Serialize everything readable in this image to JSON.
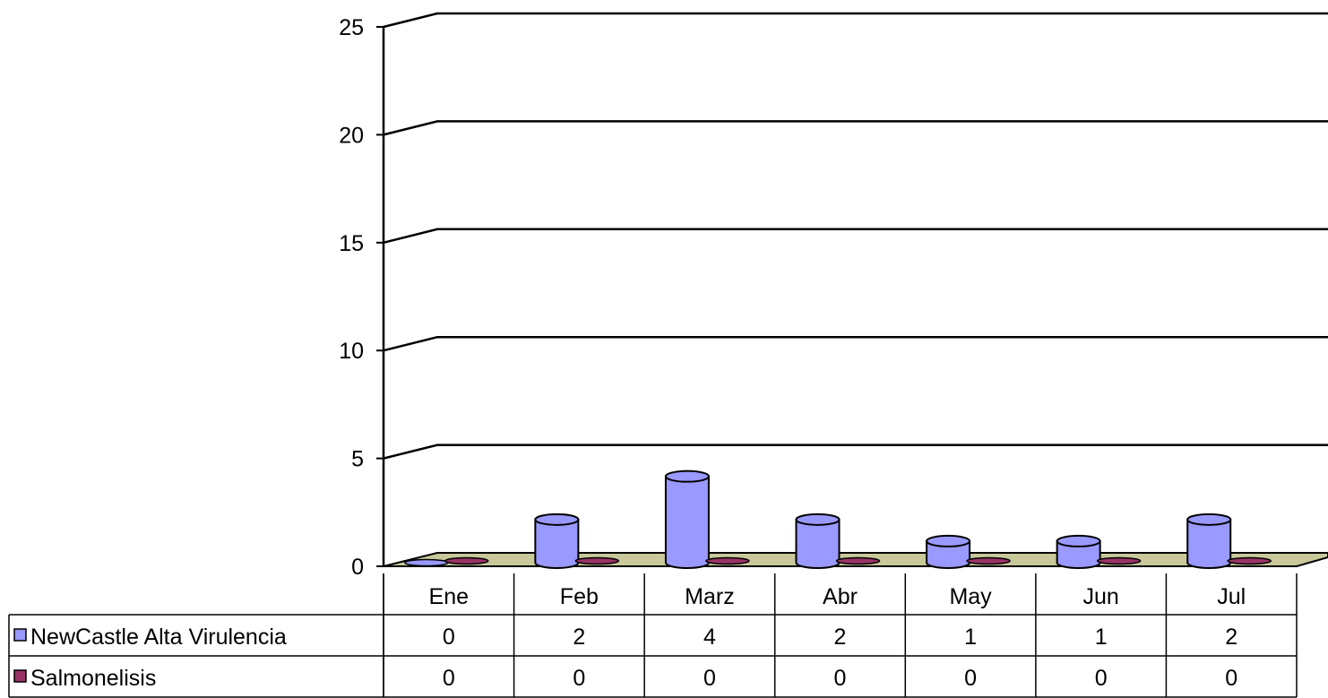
{
  "chart_data": {
    "type": "bar",
    "style": "3d-cylinder",
    "title": "",
    "xlabel": "",
    "ylabel": "",
    "ylim": [
      0,
      25
    ],
    "yticks": [
      0,
      5,
      10,
      15,
      20,
      25
    ],
    "grid": true,
    "legend": "data-table-left",
    "categories": [
      "Ene",
      "Feb",
      "Marz",
      "Abr",
      "May",
      "Jun",
      "Jul"
    ],
    "series": [
      {
        "name": "NewCastle Alta Virulencia",
        "color": "#9999ff",
        "values": [
          0,
          2,
          4,
          2,
          1,
          1,
          2
        ]
      },
      {
        "name": "Salmonelisis",
        "color": "#993366",
        "values": [
          0,
          0,
          0,
          0,
          0,
          0,
          0
        ]
      }
    ],
    "floor_color": "#c8c89b"
  }
}
